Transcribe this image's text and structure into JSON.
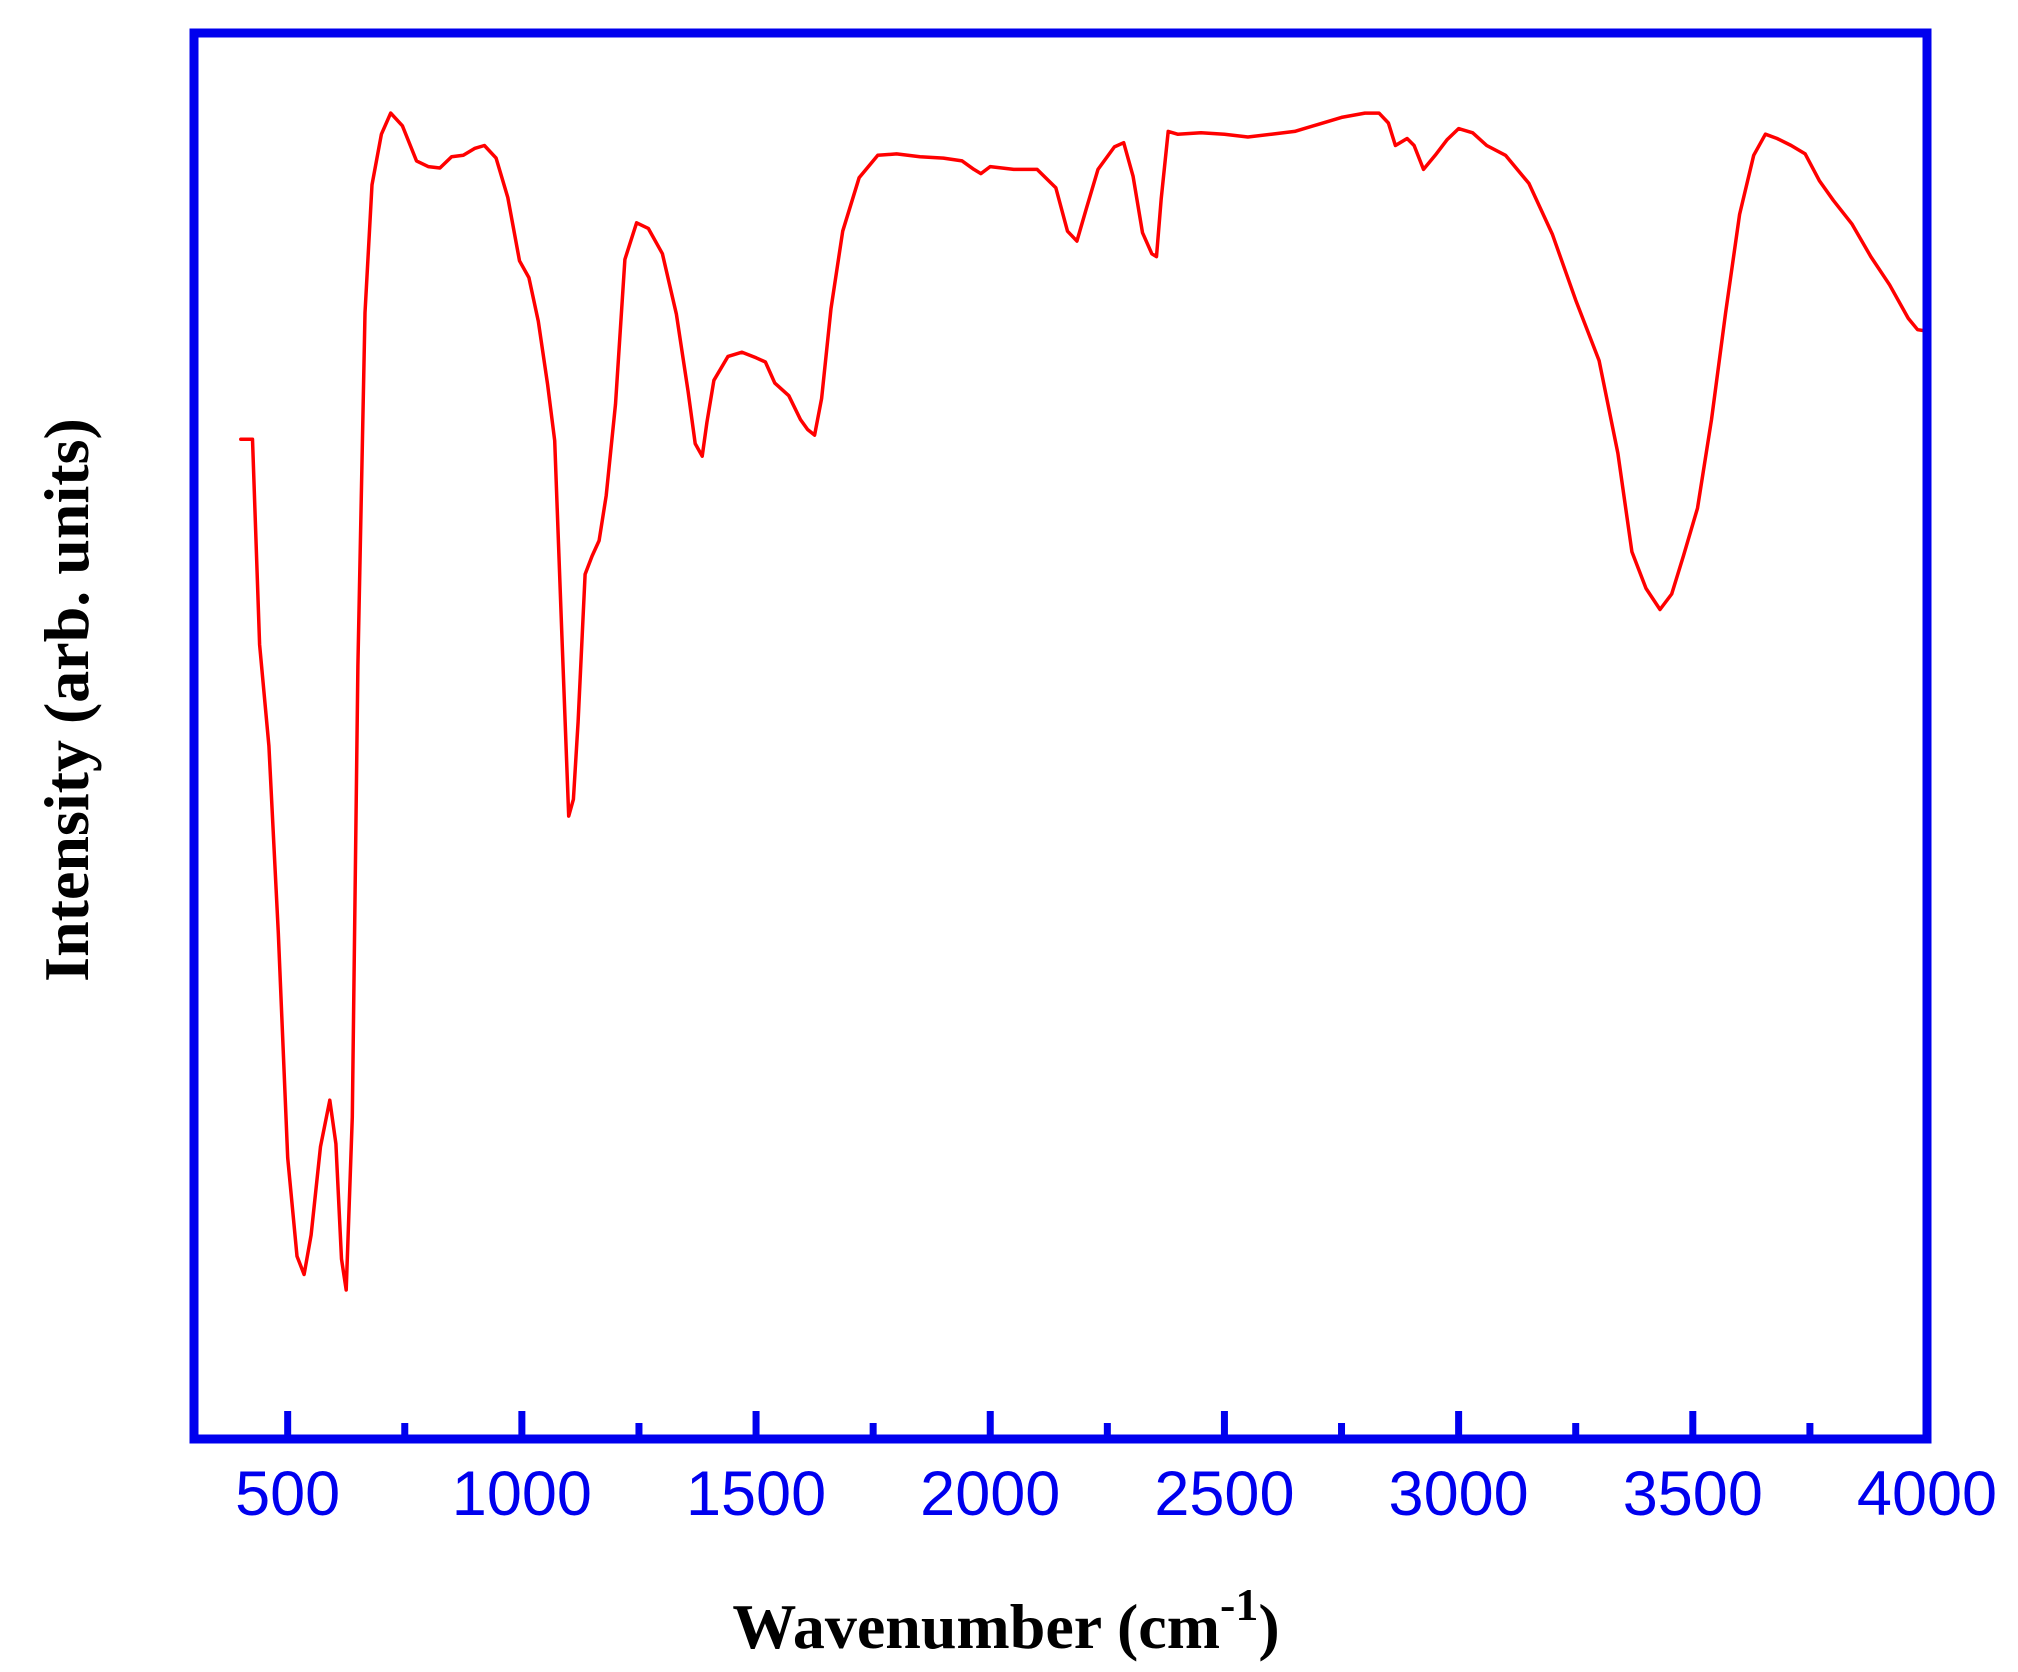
{
  "colors": {
    "axis": "#0000ee",
    "series": "#ff0000",
    "title_text": "#000000",
    "background": "#ffffff"
  },
  "chart_data": {
    "type": "line",
    "title": "",
    "xlabel": {
      "base": "Wavenumber (cm",
      "superscript": "-1",
      "suffix": ")"
    },
    "ylabel": "Intensity (arb. units)",
    "xlim": [
      300,
      4000
    ],
    "ylim": [
      0,
      100
    ],
    "y_tick_labels_shown": false,
    "grid": false,
    "legend": "none",
    "x_major_ticks": [
      500,
      1000,
      1500,
      2000,
      2500,
      3000,
      3500,
      4000
    ],
    "x_major_tick_labels": [
      "500",
      "1000",
      "1500",
      "2000",
      "2500",
      "3000",
      "3500",
      "4000"
    ],
    "x_minor_ticks": [
      750,
      1250,
      1750,
      2250,
      2750,
      3250,
      3750
    ],
    "series": [
      {
        "color": "#ff0000",
        "points": [
          [
            400,
            71.1
          ],
          [
            425,
            71.1
          ],
          [
            440,
            56.5
          ],
          [
            460,
            49.3
          ],
          [
            480,
            36.0
          ],
          [
            500,
            20.0
          ],
          [
            520,
            13.0
          ],
          [
            535,
            11.7
          ],
          [
            550,
            14.5
          ],
          [
            570,
            20.8
          ],
          [
            590,
            24.1
          ],
          [
            603,
            21.0
          ],
          [
            615,
            12.8
          ],
          [
            625,
            10.6
          ],
          [
            638,
            22.9
          ],
          [
            650,
            55.0
          ],
          [
            665,
            80.1
          ],
          [
            680,
            89.2
          ],
          [
            700,
            92.8
          ],
          [
            720,
            94.3
          ],
          [
            745,
            93.4
          ],
          [
            775,
            90.9
          ],
          [
            800,
            90.5
          ],
          [
            825,
            90.4
          ],
          [
            850,
            91.2
          ],
          [
            875,
            91.3
          ],
          [
            900,
            91.8
          ],
          [
            920,
            92.0
          ],
          [
            945,
            91.1
          ],
          [
            970,
            88.3
          ],
          [
            995,
            83.8
          ],
          [
            1015,
            82.6
          ],
          [
            1035,
            79.5
          ],
          [
            1055,
            75.0
          ],
          [
            1070,
            71.0
          ],
          [
            1085,
            57.5
          ],
          [
            1100,
            44.3
          ],
          [
            1110,
            45.5
          ],
          [
            1120,
            51.0
          ],
          [
            1135,
            61.5
          ],
          [
            1150,
            62.8
          ],
          [
            1165,
            63.9
          ],
          [
            1180,
            67.1
          ],
          [
            1200,
            73.6
          ],
          [
            1220,
            83.9
          ],
          [
            1245,
            86.5
          ],
          [
            1270,
            86.1
          ],
          [
            1300,
            84.3
          ],
          [
            1330,
            80.0
          ],
          [
            1355,
            74.5
          ],
          [
            1370,
            70.8
          ],
          [
            1385,
            69.9
          ],
          [
            1395,
            72.3
          ],
          [
            1410,
            75.3
          ],
          [
            1440,
            77.0
          ],
          [
            1470,
            77.3
          ],
          [
            1500,
            76.9
          ],
          [
            1520,
            76.6
          ],
          [
            1540,
            75.1
          ],
          [
            1570,
            74.2
          ],
          [
            1595,
            72.5
          ],
          [
            1610,
            71.8
          ],
          [
            1625,
            71.4
          ],
          [
            1640,
            74.0
          ],
          [
            1660,
            80.4
          ],
          [
            1685,
            85.9
          ],
          [
            1720,
            89.7
          ],
          [
            1760,
            91.3
          ],
          [
            1800,
            91.4
          ],
          [
            1850,
            91.2
          ],
          [
            1900,
            91.1
          ],
          [
            1940,
            90.9
          ],
          [
            1965,
            90.3
          ],
          [
            1980,
            90.0
          ],
          [
            2000,
            90.5
          ],
          [
            2050,
            90.3
          ],
          [
            2100,
            90.3
          ],
          [
            2140,
            89.0
          ],
          [
            2165,
            85.9
          ],
          [
            2185,
            85.2
          ],
          [
            2205,
            87.5
          ],
          [
            2230,
            90.3
          ],
          [
            2265,
            91.9
          ],
          [
            2285,
            92.2
          ],
          [
            2305,
            89.8
          ],
          [
            2325,
            85.8
          ],
          [
            2345,
            84.3
          ],
          [
            2355,
            84.1
          ],
          [
            2365,
            88.2
          ],
          [
            2380,
            93.0
          ],
          [
            2400,
            92.8
          ],
          [
            2450,
            92.9
          ],
          [
            2500,
            92.8
          ],
          [
            2550,
            92.6
          ],
          [
            2600,
            92.8
          ],
          [
            2650,
            93.0
          ],
          [
            2700,
            93.5
          ],
          [
            2750,
            94.0
          ],
          [
            2800,
            94.3
          ],
          [
            2830,
            94.3
          ],
          [
            2850,
            93.6
          ],
          [
            2865,
            92.0
          ],
          [
            2890,
            92.5
          ],
          [
            2905,
            92.0
          ],
          [
            2925,
            90.3
          ],
          [
            2950,
            91.3
          ],
          [
            2975,
            92.4
          ],
          [
            3000,
            93.2
          ],
          [
            3030,
            92.9
          ],
          [
            3060,
            92.0
          ],
          [
            3100,
            91.3
          ],
          [
            3150,
            89.3
          ],
          [
            3200,
            85.7
          ],
          [
            3250,
            81.0
          ],
          [
            3300,
            76.7
          ],
          [
            3340,
            70.1
          ],
          [
            3370,
            63.1
          ],
          [
            3400,
            60.5
          ],
          [
            3430,
            59.0
          ],
          [
            3455,
            60.1
          ],
          [
            3480,
            62.8
          ],
          [
            3510,
            66.2
          ],
          [
            3540,
            72.5
          ],
          [
            3570,
            80.1
          ],
          [
            3600,
            87.1
          ],
          [
            3630,
            91.3
          ],
          [
            3655,
            92.8
          ],
          [
            3680,
            92.5
          ],
          [
            3710,
            92.0
          ],
          [
            3740,
            91.4
          ],
          [
            3770,
            89.5
          ],
          [
            3800,
            88.1
          ],
          [
            3840,
            86.4
          ],
          [
            3880,
            84.1
          ],
          [
            3920,
            82.1
          ],
          [
            3960,
            79.7
          ],
          [
            3980,
            78.9
          ],
          [
            4000,
            78.8
          ]
        ]
      }
    ]
  }
}
